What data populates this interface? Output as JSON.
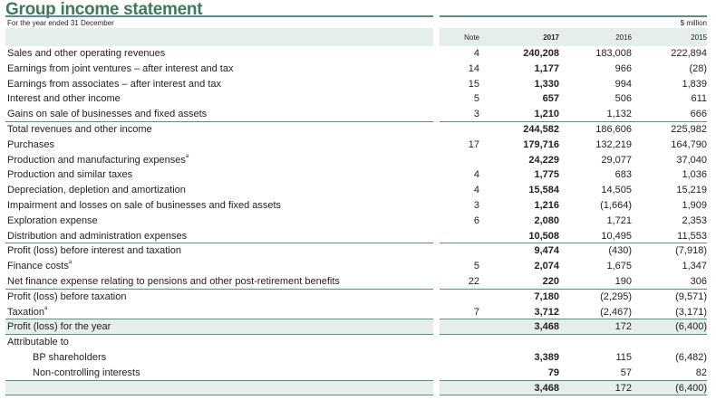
{
  "title": "Group income statement",
  "subtitle": "For the year ended 31 December",
  "unit": "$ million",
  "columns": {
    "note": "Note",
    "y2017": "2017",
    "y2016": "2016",
    "y2015": "2015"
  },
  "rows": [
    {
      "label": "Sales and other operating revenues",
      "note": "4",
      "y2017": "240,208",
      "y2016": "183,008",
      "y2015": "222,894"
    },
    {
      "label": "Earnings from joint ventures – after interest and tax",
      "note": "14",
      "y2017": "1,177",
      "y2016": "966",
      "y2015": "(28)"
    },
    {
      "label": "Earnings from associates – after interest and tax",
      "note": "15",
      "y2017": "1,330",
      "y2016": "994",
      "y2015": "1,839"
    },
    {
      "label": "Interest and other income",
      "note": "5",
      "y2017": "657",
      "y2016": "506",
      "y2015": "611"
    },
    {
      "label": "Gains on sale of businesses and fixed assets",
      "note": "3",
      "y2017": "1,210",
      "y2016": "1,132",
      "y2015": "666"
    },
    {
      "label": "Total revenues and other income",
      "note": "",
      "y2017": "244,582",
      "y2016": "186,606",
      "y2015": "225,982"
    },
    {
      "label": "Purchases",
      "note": "17",
      "y2017": "179,716",
      "y2016": "132,219",
      "y2015": "164,790"
    },
    {
      "label": "Production and manufacturing expenses",
      "sup": "a",
      "note": "",
      "y2017": "24,229",
      "y2016": "29,077",
      "y2015": "37,040"
    },
    {
      "label": "Production and similar taxes",
      "note": "4",
      "y2017": "1,775",
      "y2016": "683",
      "y2015": "1,036"
    },
    {
      "label": "Depreciation, depletion and amortization",
      "note": "4",
      "y2017": "15,584",
      "y2016": "14,505",
      "y2015": "15,219"
    },
    {
      "label": "Impairment and losses on sale of businesses and fixed assets",
      "note": "3",
      "y2017": "1,216",
      "y2016": "(1,664)",
      "y2015": "1,909"
    },
    {
      "label": "Exploration expense",
      "note": "6",
      "y2017": "2,080",
      "y2016": "1,721",
      "y2015": "2,353"
    },
    {
      "label": "Distribution and administration expenses",
      "note": "",
      "y2017": "10,508",
      "y2016": "10,495",
      "y2015": "11,553"
    },
    {
      "label": "Profit (loss) before interest and taxation",
      "note": "",
      "y2017": "9,474",
      "y2016": "(430)",
      "y2015": "(7,918)"
    },
    {
      "label": "Finance costs",
      "sup": "a",
      "note": "5",
      "y2017": "2,074",
      "y2016": "1,675",
      "y2015": "1,347"
    },
    {
      "label": "Net finance expense relating to pensions and other post-retirement benefits",
      "note": "22",
      "y2017": "220",
      "y2016": "190",
      "y2015": "306"
    },
    {
      "label": "Profit (loss) before taxation",
      "note": "",
      "y2017": "7,180",
      "y2016": "(2,295)",
      "y2015": "(9,571)"
    },
    {
      "label": "Taxation",
      "sup": "a",
      "note": "7",
      "y2017": "3,712",
      "y2016": "(2,467)",
      "y2015": "(3,171)"
    },
    {
      "label": "Profit (loss) for the year",
      "note": "",
      "y2017": "3,468",
      "y2016": "172",
      "y2015": "(6,400)"
    },
    {
      "label": "Attributable to",
      "note": "",
      "y2017": "",
      "y2016": "",
      "y2015": ""
    },
    {
      "label": "BP shareholders",
      "note": "",
      "y2017": "3,389",
      "y2016": "115",
      "y2015": "(6,482)"
    },
    {
      "label": "Non-controlling interests",
      "note": "",
      "y2017": "79",
      "y2016": "57",
      "y2015": "82"
    },
    {
      "label": "",
      "note": "",
      "y2017": "3,468",
      "y2016": "172",
      "y2015": "(6,400)"
    }
  ],
  "theme": {
    "accent": "#3f7a5c",
    "rule": "#5a8f88",
    "shade": "#e6eeeb"
  }
}
